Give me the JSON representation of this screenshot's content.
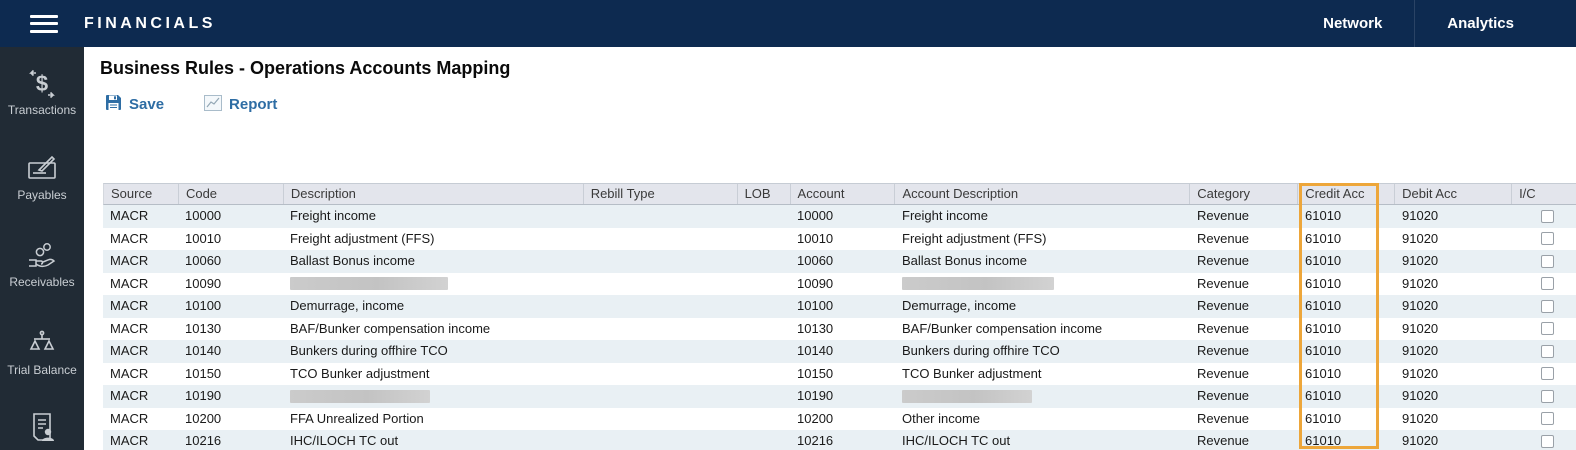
{
  "topbar": {
    "brand": "FINANCIALS",
    "nav": [
      {
        "label": "Network"
      },
      {
        "label": "Analytics"
      }
    ]
  },
  "sidebar": {
    "items": [
      {
        "label": "Transactions",
        "icon": "dollar-transfer-icon"
      },
      {
        "label": "Payables",
        "icon": "cheque-pencil-icon"
      },
      {
        "label": "Receivables",
        "icon": "hand-coins-icon"
      },
      {
        "label": "Trial Balance",
        "icon": "balance-scales-icon"
      },
      {
        "label": "",
        "icon": "document-person-icon"
      }
    ]
  },
  "page": {
    "title": "Business Rules - Operations Accounts Mapping",
    "toolbar": {
      "save": "Save",
      "report": "Report"
    }
  },
  "table": {
    "columns": [
      "Source",
      "Code",
      "Description",
      "Rebill Type",
      "LOB",
      "Account",
      "Account Description",
      "Category",
      "Credit Acc",
      "Debit Acc",
      "I/C"
    ],
    "highlighted_column": "Credit Acc",
    "highlight_color": "#eda63a",
    "rows": [
      {
        "source": "MACR",
        "code": "10000",
        "description": "Freight income",
        "rebill": "",
        "lob": "",
        "account": "10000",
        "account_description": "Freight income",
        "category": "Revenue",
        "credit": "61010",
        "debit": "91020",
        "ic": false,
        "redacted": false
      },
      {
        "source": "MACR",
        "code": "10010",
        "description": "Freight adjustment (FFS)",
        "rebill": "",
        "lob": "",
        "account": "10010",
        "account_description": "Freight adjustment (FFS)",
        "category": "Revenue",
        "credit": "61010",
        "debit": "91020",
        "ic": false,
        "redacted": false
      },
      {
        "source": "MACR",
        "code": "10060",
        "description": "Ballast Bonus income",
        "rebill": "",
        "lob": "",
        "account": "10060",
        "account_description": "Ballast Bonus income",
        "category": "Revenue",
        "credit": "61010",
        "debit": "91020",
        "ic": false,
        "redacted": false
      },
      {
        "source": "MACR",
        "code": "10090",
        "description": "",
        "rebill": "",
        "lob": "",
        "account": "10090",
        "account_description": "",
        "category": "Revenue",
        "credit": "61010",
        "debit": "91020",
        "ic": false,
        "redacted": true,
        "redact_width_description": 158,
        "redact_width_account_description": 152
      },
      {
        "source": "MACR",
        "code": "10100",
        "description": "Demurrage, income",
        "rebill": "",
        "lob": "",
        "account": "10100",
        "account_description": "Demurrage, income",
        "category": "Revenue",
        "credit": "61010",
        "debit": "91020",
        "ic": false,
        "redacted": false
      },
      {
        "source": "MACR",
        "code": "10130",
        "description": "BAF/Bunker compensation income",
        "rebill": "",
        "lob": "",
        "account": "10130",
        "account_description": "BAF/Bunker compensation income",
        "category": "Revenue",
        "credit": "61010",
        "debit": "91020",
        "ic": false,
        "redacted": false
      },
      {
        "source": "MACR",
        "code": "10140",
        "description": "Bunkers during offhire TCO",
        "rebill": "",
        "lob": "",
        "account": "10140",
        "account_description": "Bunkers during offhire TCO",
        "category": "Revenue",
        "credit": "61010",
        "debit": "91020",
        "ic": false,
        "redacted": false
      },
      {
        "source": "MACR",
        "code": "10150",
        "description": "TCO Bunker adjustment",
        "rebill": "",
        "lob": "",
        "account": "10150",
        "account_description": "TCO Bunker adjustment",
        "category": "Revenue",
        "credit": "61010",
        "debit": "91020",
        "ic": false,
        "redacted": false
      },
      {
        "source": "MACR",
        "code": "10190",
        "description": "",
        "rebill": "",
        "lob": "",
        "account": "10190",
        "account_description": "",
        "category": "Revenue",
        "credit": "61010",
        "debit": "91020",
        "ic": false,
        "redacted": true,
        "redact_width_description": 140,
        "redact_width_account_description": 130
      },
      {
        "source": "MACR",
        "code": "10200",
        "description": "FFA Unrealized Portion",
        "rebill": "",
        "lob": "",
        "account": "10200",
        "account_description": "Other income",
        "category": "Revenue",
        "credit": "61010",
        "debit": "91020",
        "ic": false,
        "redacted": false
      },
      {
        "source": "MACR",
        "code": "10216",
        "description": "IHC/ILOCH TC out",
        "rebill": "",
        "lob": "",
        "account": "10216",
        "account_description": "IHC/ILOCH TC out",
        "category": "Revenue",
        "credit": "61010",
        "debit": "91020",
        "ic": false,
        "redacted": false
      }
    ]
  }
}
